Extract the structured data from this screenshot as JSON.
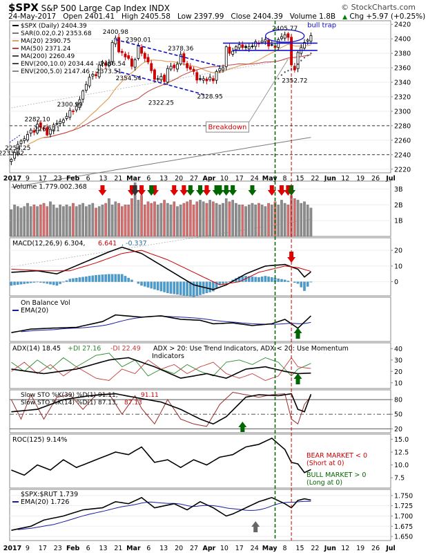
{
  "header": {
    "symbol": "$SPX",
    "name": "S&P 500 Large Cap Index",
    "exchange": "INDX",
    "credit": "© StockCharts.com",
    "date": "24-May-2017",
    "open": "Open 2401.41",
    "high": "High 2405.58",
    "low": "Low 2397.99",
    "close": "Close 2404.39",
    "volume": "Volume 1.8B",
    "change": "Chg +5.97 (+0.25%)",
    "change_icon": "up-triangle-icon"
  },
  "colors": {
    "up_candle": "#000000",
    "down_candle": "#cc0000",
    "ma20": "#e0a060",
    "ma50": "#c04040",
    "ma200": "#7a7a7a",
    "trendline": "#1010cc",
    "signal_red": "#e00000",
    "signal_green": "#006600",
    "signal_gray": "#666666",
    "marker_green": "#006600",
    "marker_red": "#cc0000",
    "volume_up": "#8c8c8c",
    "volume_down": "#d96b6b",
    "macd_hist": "#4a9ccc",
    "ema_blue": "#1a1aa0",
    "plus_di": "#2a8a2a",
    "minus_di": "#c43a3a"
  },
  "chart_data": [
    {
      "type": "candlestick",
      "id": "price",
      "legend": [
        "$SPX (Daily) 2404.39",
        "SAR(0.02,0.2) 2353.68",
        "MA(20) 2390.75",
        "MA(50) 2371.24",
        "MA(200) 2260.49",
        "ENV(200,10.0) 2034.44 - 2486.54",
        "ENV(200,5.0) 2147.46 - 2373.51"
      ],
      "ylim": [
        2215,
        2425
      ],
      "yticks": [
        2220,
        2240,
        2260,
        2280,
        2300,
        2320,
        2340,
        2360,
        2380,
        2400,
        2420
      ],
      "xticks": [
        "2017",
        "9",
        "17",
        "23",
        "Feb",
        "6",
        "13",
        "21",
        "Mar",
        "6",
        "13",
        "20",
        "27",
        "Apr",
        "10",
        "17",
        "24",
        "May",
        "8",
        "15",
        "22",
        "Jun",
        "12",
        "19",
        "26",
        "Jul"
      ],
      "close": [
        2233.62,
        2243,
        2254.25,
        2259,
        2262,
        2268,
        2274,
        2271,
        2282.1,
        2278,
        2277,
        2267.21,
        2275,
        2281,
        2283,
        2286,
        2288,
        2293,
        2300.99,
        2300,
        2307,
        2316,
        2328,
        2337,
        2347,
        2351,
        2349,
        2364,
        2368,
        2363,
        2367,
        2395,
        2400.98,
        2382,
        2381,
        2375,
        2373,
        2362,
        2371,
        2390.01,
        2380,
        2373,
        2368,
        2356,
        2344,
        2345,
        2348,
        2341,
        2359,
        2362,
        2360,
        2365,
        2378.36,
        2368,
        2360,
        2358,
        2355,
        2343,
        2344,
        2345,
        2342,
        2347,
        2342,
        2355,
        2359,
        2360,
        2389,
        2380,
        2383,
        2389,
        2392,
        2388,
        2388,
        2389,
        2389,
        2396,
        2393,
        2397,
        2399,
        2390,
        2392,
        2388,
        2399,
        2403,
        2405.77,
        2402,
        2364,
        2357,
        2381,
        2388,
        2395,
        2398.42,
        2404.39
      ],
      "sar": [
        2345,
        2350,
        2354,
        2356,
        2358,
        2362,
        2365,
        2370,
        2374,
        2377,
        2380
      ],
      "sar_last": 2353.68,
      "labels": [
        {
          "text": "2233.62",
          "value": 2233.62
        },
        {
          "text": "2254.25",
          "value": 2254.25
        },
        {
          "text": "2267.21",
          "value": 2267.21
        },
        {
          "text": "2282.10",
          "value": 2282.1
        },
        {
          "text": "2300.99",
          "value": 2300.99
        },
        {
          "text": "2400.98",
          "value": 2400.98
        },
        {
          "text": "2390.01",
          "value": 2390.01
        },
        {
          "text": "2354.54",
          "value": 2354.54
        },
        {
          "text": "2378.36",
          "value": 2378.36
        },
        {
          "text": "2322.25",
          "value": 2322.25
        },
        {
          "text": "2328.95",
          "value": 2328.95
        },
        {
          "text": "2405.77",
          "value": 2405.77
        },
        {
          "text": "2352.72",
          "value": 2352.72
        }
      ],
      "annotations": [
        "bull trap",
        "Breakdown"
      ],
      "horizontal_lines": [
        2280,
        2240
      ]
    },
    {
      "type": "bar",
      "id": "volume",
      "legend": "Volume 1,779,002,368",
      "yticks_label": [
        "3B",
        "2B",
        "1B"
      ],
      "ylim": [
        0,
        3.5
      ],
      "values": [
        1.7,
        2.0,
        1.9,
        1.8,
        1.9,
        2.1,
        1.9,
        2.0,
        1.9,
        2.0,
        2.1,
        1.9,
        2.2,
        2.0,
        1.8,
        2.0,
        1.9,
        2.0,
        1.9,
        2.1,
        1.9,
        2.0,
        2.1,
        1.9,
        2.0,
        2.1,
        1.8,
        1.9,
        2.0,
        2.1,
        2.4,
        2.0,
        2.2,
        2.1,
        1.9,
        2.0,
        2.0,
        2.4,
        3.4,
        2.3,
        2.6,
        2.0,
        2.2,
        2.1,
        2.2,
        2.0,
        2.1,
        2.3,
        2.1,
        2.0,
        2.2,
        1.9,
        2.0,
        2.1,
        2.2,
        2.3,
        2.0,
        2.2,
        2.3,
        2.2,
        2.1,
        2.3,
        2.2,
        2.1,
        2.0,
        2.1,
        2.4,
        2.2,
        2.3,
        2.1,
        2.0,
        2.0,
        1.9,
        2.0,
        2.1,
        2.0,
        2.1,
        2.0,
        1.9,
        2.1,
        2.0,
        2.2,
        2.0,
        2.3,
        2.1,
        2.0,
        2.6,
        2.4,
        2.3,
        2.1,
        2.2,
        2.0,
        1.8
      ]
    },
    {
      "type": "line",
      "id": "macd",
      "legend": [
        "MACD(12,26,9) 6.304,",
        "6.641",
        ", -0.337"
      ],
      "ylim": [
        -9,
        28
      ],
      "yticks": [
        0,
        10,
        20
      ]
    },
    {
      "type": "line",
      "id": "obv",
      "legend": [
        "On Balance Vol",
        "EMA(20)"
      ]
    },
    {
      "type": "line",
      "id": "adx",
      "legend": [
        "ADX(14) 18.45",
        "+DI 27.16",
        "-DI 22.49",
        "ADX > 20: Use Trend Indicators, ADX < 20: Use Momentum",
        "Indicators"
      ],
      "ylim": [
        5,
        45
      ],
      "yticks": [
        10,
        20,
        30,
        40
      ]
    },
    {
      "type": "line",
      "id": "sto",
      "legend": [
        "Slow STO %K(39) %D(1) 91.11,",
        "91.11",
        "Slow STO %K(14) %D(1) 87.13,",
        "87.13"
      ],
      "ylim": [
        12,
        100
      ],
      "yticks": [
        20,
        50,
        80
      ]
    },
    {
      "type": "line",
      "id": "roc",
      "legend": "ROC(125) 9.14%",
      "ylim": [
        5.5,
        16
      ],
      "yticks": [
        7.5,
        10.0,
        12.5,
        15.0
      ],
      "notes": [
        "BEAR MARKET < 0",
        "(Short at 0)",
        "BULL MARKET > 0",
        "(Long at 0)"
      ]
    },
    {
      "type": "line",
      "id": "ratio",
      "legend": [
        "$SPX:$RUT 1.739",
        "EMA(20) 1.726"
      ],
      "ylim": [
        1.64,
        1.765
      ],
      "yticks": [
        1.65,
        1.675,
        1.7,
        1.725,
        1.75
      ]
    }
  ]
}
